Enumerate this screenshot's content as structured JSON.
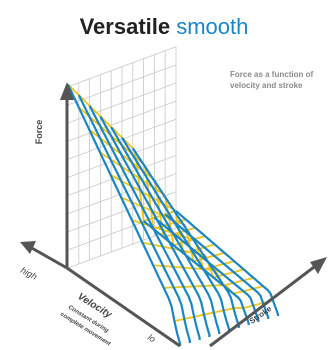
{
  "title": {
    "bold": "Versatile",
    "accent": "smooth"
  },
  "note": "Force as a function of velocity and stroke",
  "axes": {
    "force": "Force",
    "velocity": "Velocity",
    "stroke": "Stroke",
    "high": "high",
    "low": "lo",
    "velocity_sub1": "Constant during",
    "velocity_sub2": "complete movement"
  },
  "colors": {
    "blue": "#1a86c4",
    "yellow": "#f2c318",
    "grid": "#c8c8c8",
    "axis": "#555555",
    "title_accent": "#1a86c4"
  }
}
